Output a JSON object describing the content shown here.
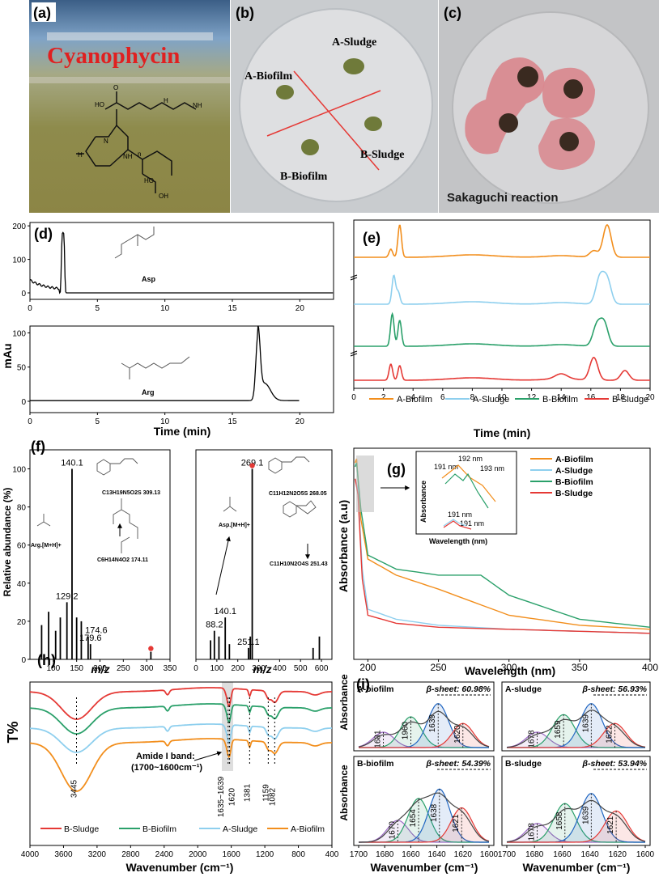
{
  "panels": {
    "a": {
      "label": "(a)",
      "title": "Cyanophycin"
    },
    "b": {
      "label": "(b)",
      "samples": [
        "A-Sludge",
        "A-Biofilm",
        "B-Sludge",
        "B-Biofilm"
      ]
    },
    "c": {
      "label": "(c)",
      "caption": "Sakaguchi reaction"
    },
    "d": {
      "label": "(d)",
      "ylabel": "mAu",
      "xlabel": "Time (min)",
      "compound1": "Asp",
      "compound2": "Arg"
    },
    "e": {
      "label": "(e)",
      "xlabel": "Time (min)"
    },
    "f": {
      "label": "(f)",
      "ylabel": "Relative abundance (%)",
      "xlabel": "m/z",
      "left_formulas": [
        "C13H19N5O2S 309.13",
        "Arg.[M+H]+",
        "C6H14N4O2 174.11"
      ],
      "right_formulas": [
        "C11H12N2O5S 268.05",
        "Asp.[M+H]+",
        "C11H10N2O4S 251.43"
      ]
    },
    "g": {
      "label": "(g)",
      "ylabel": "Absorbance (a.u)",
      "xlabel": "Wavelength (nm)",
      "inset_ylabel": "Absorbance",
      "inset_xlabel": "Wavelength (nm)",
      "inset_peaks": [
        "192 nm",
        "191 nm",
        "193 nm",
        "191 nm",
        "191 nm"
      ]
    },
    "h": {
      "label": "(h)",
      "ylabel": "T%",
      "xlabel": "Wavenumber (cm⁻¹)",
      "amide": "Amide I band:",
      "amide2": "(1700~1600cm⁻¹)"
    },
    "i": {
      "label": "(i)",
      "ylabel": "Absorbance",
      "xlabel": "Wavenumber (cm⁻¹)"
    }
  },
  "legend_e": [
    "A-Biofilm",
    "A-Sludge",
    "B-Biofilm",
    "B-Sludge"
  ],
  "legend_h": [
    "B-Sludge",
    "B-Biofilm",
    "A-Sludge",
    "A-Biofilm"
  ],
  "colors": {
    "A-Biofilm": "#f28e1c",
    "A-Sludge": "#8ecfee",
    "B-Biofilm": "#2aa06a",
    "B-Sludge": "#e53935"
  },
  "chart_data": [
    {
      "panel": "d-top",
      "type": "line",
      "x": [
        0,
        1,
        2,
        2.3,
        2.5,
        2.7,
        3,
        5,
        10,
        15,
        20,
        22.5
      ],
      "y": [
        30,
        22,
        15,
        185,
        180,
        20,
        2,
        0,
        0,
        0,
        0,
        0
      ],
      "xlim": [
        0,
        22.5
      ],
      "ylim": [
        0,
        200
      ],
      "xticks": [
        0,
        5,
        10,
        15,
        20
      ],
      "yticks": [
        0,
        100,
        200
      ]
    },
    {
      "panel": "d-bottom",
      "type": "line",
      "x": [
        0,
        5,
        10,
        15,
        16.2,
        16.6,
        16.9,
        17.3,
        18,
        20
      ],
      "y": [
        0,
        0,
        0,
        2,
        10,
        60,
        97,
        40,
        5,
        2
      ],
      "xlim": [
        0,
        22.5
      ],
      "ylim": [
        0,
        100
      ],
      "xticks": [
        0,
        5,
        10,
        15,
        20
      ],
      "yticks": [
        0,
        50,
        100
      ]
    },
    {
      "panel": "e",
      "type": "line",
      "xlim": [
        0,
        20
      ],
      "xticks": [
        0,
        2,
        4,
        6,
        8,
        10,
        12,
        14,
        16,
        18,
        20
      ],
      "series": [
        {
          "name": "A-Biofilm",
          "peaks": [
            [
              2.5,
              10
            ],
            [
              3.1,
              40
            ],
            [
              16.2,
              8
            ],
            [
              17.1,
              40
            ]
          ]
        },
        {
          "name": "A-Sludge",
          "peaks": [
            [
              2.7,
              35
            ],
            [
              3.0,
              15
            ],
            [
              16.6,
              32
            ],
            [
              17.1,
              30
            ]
          ]
        },
        {
          "name": "B-Biofilm",
          "peaks": [
            [
              2.6,
              40
            ],
            [
              3.1,
              32
            ],
            [
              16.4,
              25
            ],
            [
              16.9,
              28
            ]
          ]
        },
        {
          "name": "B-Sludge",
          "peaks": [
            [
              2.5,
              20
            ],
            [
              3.1,
              18
            ],
            [
              16.2,
              28
            ],
            [
              18.3,
              12
            ]
          ]
        }
      ]
    },
    {
      "panel": "f-left",
      "type": "bar",
      "xlim": [
        50,
        350
      ],
      "ylim": [
        0,
        110
      ],
      "xticks": [
        100,
        150,
        200,
        250,
        300,
        350
      ],
      "yticks": [
        0,
        20,
        40,
        60,
        80,
        100
      ],
      "x": [
        75,
        90,
        105,
        115,
        129.2,
        140.1,
        150,
        160,
        174.6,
        179.6,
        309
      ],
      "y": [
        18,
        25,
        15,
        22,
        30,
        100,
        22,
        20,
        12,
        8,
        4
      ],
      "labels": {
        "129.2": "129.2",
        "140.1": "140.1",
        "174.6": "174.6",
        "179.6": "179.6"
      }
    },
    {
      "panel": "f-right",
      "type": "bar",
      "xlim": [
        0,
        650
      ],
      "ylim": [
        0,
        110
      ],
      "xticks": [
        0,
        100,
        200,
        300,
        400,
        500,
        600
      ],
      "yticks": [
        0,
        20,
        40,
        60,
        80,
        100
      ],
      "x": [
        70,
        88.2,
        110,
        140.1,
        160,
        251.1,
        260,
        269.1,
        560,
        590
      ],
      "y": [
        10,
        15,
        12,
        22,
        8,
        6,
        12,
        100,
        6,
        12
      ],
      "labels": {
        "88.2": "88.2",
        "140.1": "140.1",
        "251.1": "251.1",
        "269.1": "269.1"
      }
    },
    {
      "panel": "g",
      "type": "line",
      "xlim": [
        190,
        400
      ],
      "xticks": [
        200,
        250,
        300,
        350,
        400
      ],
      "series": [
        {
          "name": "A-Biofilm",
          "x": [
            191,
            192,
            195,
            200,
            220,
            250,
            300,
            350,
            400
          ],
          "y": [
            0.98,
            1.0,
            0.7,
            0.5,
            0.42,
            0.35,
            0.22,
            0.17,
            0.15
          ]
        },
        {
          "name": "A-Sludge",
          "x": [
            191,
            193,
            196,
            200,
            220,
            250,
            300,
            350,
            400
          ],
          "y": [
            0.9,
            0.85,
            0.45,
            0.25,
            0.2,
            0.17,
            0.15,
            0.14,
            0.13
          ]
        },
        {
          "name": "B-Biofilm",
          "x": [
            191,
            192,
            195,
            200,
            220,
            250,
            280,
            300,
            350,
            400
          ],
          "y": [
            0.96,
            0.98,
            0.75,
            0.52,
            0.45,
            0.42,
            0.42,
            0.32,
            0.2,
            0.16
          ]
        },
        {
          "name": "B-Sludge",
          "x": [
            191,
            193,
            196,
            200,
            220,
            250,
            300,
            350,
            400
          ],
          "y": [
            0.9,
            0.82,
            0.4,
            0.22,
            0.18,
            0.16,
            0.15,
            0.14,
            0.13
          ]
        }
      ]
    },
    {
      "panel": "h",
      "type": "line",
      "xlim": [
        4000,
        400
      ],
      "xticks": [
        4000,
        3600,
        3200,
        2800,
        2400,
        2000,
        1600,
        1200,
        800,
        400
      ],
      "annotations": [
        "3445",
        "1635~1639",
        "1620",
        "1381",
        "1159",
        "1082"
      ],
      "series": [
        {
          "name": "B-Sludge"
        },
        {
          "name": "B-Biofilm"
        },
        {
          "name": "A-Sludge"
        },
        {
          "name": "A-Biofilm"
        }
      ]
    },
    {
      "panel": "i",
      "type": "area",
      "xlim": [
        1700,
        1600
      ],
      "xticks": [
        1700,
        1680,
        1660,
        1640,
        1620,
        1600
      ],
      "subplots": [
        {
          "title": "A-biofilm",
          "beta": "β-sheet: 60.98%",
          "peaks": [
            "1681",
            "1960",
            "1639",
            "1620"
          ]
        },
        {
          "title": "A-sludge",
          "beta": "β-sheet: 56.93%",
          "peaks": [
            "1678",
            "1659",
            "1639",
            "1622"
          ]
        },
        {
          "title": "B-biofilm",
          "beta": "β-sheet: 54.39%",
          "peaks": [
            "1670",
            "1654",
            "1638",
            "1621"
          ]
        },
        {
          "title": "B-sludge",
          "beta": "β-sheet: 53.94%",
          "peaks": [
            "1678",
            "1658",
            "1639",
            "1621"
          ]
        }
      ]
    }
  ]
}
